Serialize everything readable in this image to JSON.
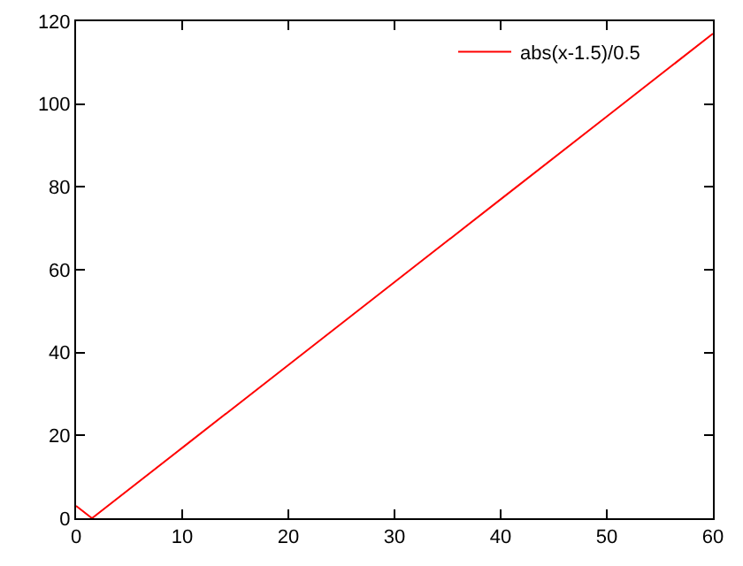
{
  "chart_data": {
    "type": "line",
    "x": [
      0,
      1.5,
      10,
      20,
      30,
      40,
      50,
      60
    ],
    "series": [
      {
        "name": "abs(x-1.5)/0.5",
        "color": "#ff0000",
        "values": [
          3,
          0,
          17,
          37,
          57,
          77,
          97,
          117
        ]
      }
    ],
    "xlim": [
      0,
      60
    ],
    "xticks": [
      0,
      10,
      20,
      30,
      40,
      50,
      60
    ],
    "ylim": [
      0,
      120
    ],
    "yticks": [
      0,
      20,
      40,
      60,
      80,
      100,
      120
    ],
    "grid": false,
    "legend": "top right",
    "marker": "none",
    "line_style": "solid"
  }
}
